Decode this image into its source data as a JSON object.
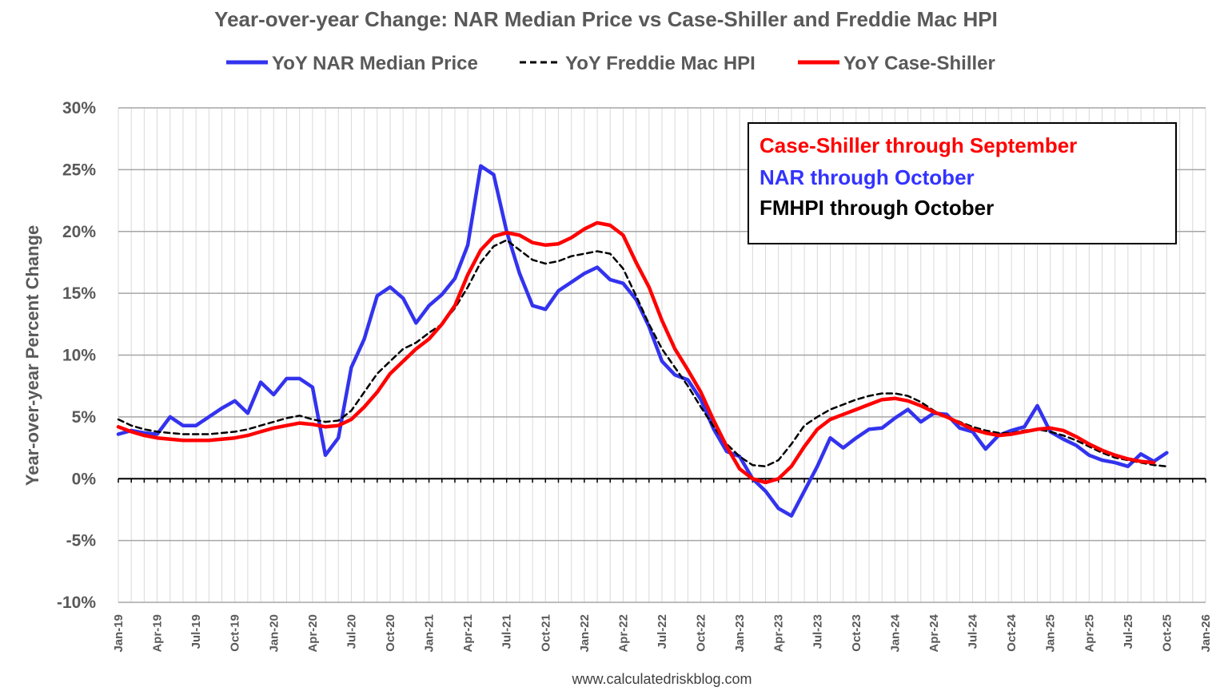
{
  "chart_data": {
    "type": "line",
    "title": "Year-over-year Change: NAR Median Price vs Case-Shiller and Freddie Mac HPI",
    "ylabel": "Year-over-year Percent Change",
    "xlabel": "",
    "ylim": [
      -10,
      30
    ],
    "y_ticks": [
      30,
      25,
      20,
      15,
      10,
      5,
      0,
      -5,
      -10
    ],
    "y_tick_labels": [
      "30%",
      "25%",
      "20%",
      "15%",
      "10%",
      "5%",
      "0%",
      "-5%",
      "-10%"
    ],
    "x_tick_labels": [
      "Jan-19",
      "Apr-19",
      "Jul-19",
      "Oct-19",
      "Jan-20",
      "Apr-20",
      "Jul-20",
      "Oct-20",
      "Jan-21",
      "Apr-21",
      "Jul-21",
      "Oct-21",
      "Jan-22",
      "Apr-22",
      "Jul-22",
      "Oct-22",
      "Jan-23",
      "Apr-23",
      "Jul-23",
      "Oct-23",
      "Jan-24",
      "Apr-24",
      "Jul-24",
      "Oct-24",
      "Jan-25",
      "Apr-25",
      "Jul-25",
      "Oct-25",
      "Jan-26"
    ],
    "x_start": "Jan-19",
    "x_unit": "month",
    "grid": true,
    "legend_position": "top",
    "source": "www.calculatedriskblog.com",
    "annotations": [
      {
        "text": "Case-Shiller through September",
        "color": "#ff0000"
      },
      {
        "text": "NAR through October",
        "color": "#3333ff"
      },
      {
        "text": "FMHPI through October",
        "color": "#000000"
      }
    ],
    "series": [
      {
        "name": "YoY NAR Median Price",
        "color": "#3333ee",
        "style": "solid",
        "values": [
          3.6,
          3.9,
          3.7,
          3.6,
          5.0,
          4.3,
          4.3,
          5.0,
          5.7,
          6.3,
          5.3,
          7.8,
          6.8,
          8.1,
          8.1,
          7.4,
          1.9,
          3.3,
          9.0,
          11.3,
          14.8,
          15.5,
          14.6,
          12.6,
          14.0,
          14.9,
          16.2,
          18.9,
          25.3,
          24.6,
          20.0,
          16.6,
          14.0,
          13.7,
          15.2,
          15.9,
          16.6,
          17.1,
          16.1,
          15.8,
          14.5,
          12.3,
          9.5,
          8.4,
          8.0,
          6.4,
          4.0,
          2.2,
          1.8,
          0.0,
          -1.0,
          -2.4,
          -3.0,
          -1.0,
          1.0,
          3.3,
          2.5,
          3.3,
          4.0,
          4.1,
          4.9,
          5.6,
          4.6,
          5.3,
          5.2,
          4.1,
          3.8,
          2.4,
          3.5,
          3.9,
          4.2,
          5.9,
          3.8,
          3.2,
          2.7,
          1.9,
          1.5,
          1.3,
          1.0,
          2.0,
          1.4,
          2.1
        ]
      },
      {
        "name": "YoY Freddie Mac HPI",
        "color": "#000000",
        "style": "dashed",
        "values": [
          4.8,
          4.3,
          4.0,
          3.8,
          3.7,
          3.6,
          3.6,
          3.6,
          3.7,
          3.8,
          4.0,
          4.3,
          4.6,
          4.9,
          5.1,
          4.8,
          4.6,
          4.7,
          5.5,
          7.0,
          8.5,
          9.5,
          10.5,
          11.0,
          11.8,
          12.5,
          13.8,
          15.5,
          17.5,
          18.8,
          19.3,
          18.5,
          17.7,
          17.4,
          17.6,
          18.0,
          18.2,
          18.4,
          18.2,
          17.0,
          14.8,
          12.5,
          10.5,
          9.0,
          7.5,
          5.8,
          4.2,
          2.8,
          1.8,
          1.1,
          1.0,
          1.5,
          2.8,
          4.3,
          5.0,
          5.6,
          6.0,
          6.4,
          6.7,
          6.9,
          6.9,
          6.7,
          6.2,
          5.5,
          5.0,
          4.6,
          4.2,
          3.9,
          3.7,
          3.7,
          3.9,
          4.0,
          3.8,
          3.5,
          3.1,
          2.6,
          2.1,
          1.7,
          1.5,
          1.3,
          1.1,
          1.0
        ]
      },
      {
        "name": "YoY Case-Shiller",
        "color": "#ff0000",
        "style": "solid",
        "values": [
          4.2,
          3.8,
          3.5,
          3.3,
          3.2,
          3.1,
          3.1,
          3.1,
          3.2,
          3.3,
          3.5,
          3.8,
          4.1,
          4.3,
          4.5,
          4.4,
          4.2,
          4.3,
          4.8,
          5.8,
          7.0,
          8.5,
          9.5,
          10.5,
          11.3,
          12.5,
          14.0,
          16.5,
          18.5,
          19.6,
          19.9,
          19.7,
          19.1,
          18.9,
          19.0,
          19.5,
          20.2,
          20.7,
          20.5,
          19.7,
          17.5,
          15.5,
          12.8,
          10.5,
          8.8,
          7.0,
          4.7,
          2.6,
          0.8,
          0.0,
          -0.3,
          0.0,
          1.0,
          2.6,
          4.0,
          4.8,
          5.2,
          5.6,
          6.0,
          6.4,
          6.5,
          6.3,
          5.9,
          5.4,
          5.0,
          4.5,
          4.0,
          3.7,
          3.5,
          3.6,
          3.8,
          4.0,
          4.1,
          3.9,
          3.4,
          2.8,
          2.3,
          1.9,
          1.6,
          1.4,
          1.3
        ]
      }
    ]
  }
}
